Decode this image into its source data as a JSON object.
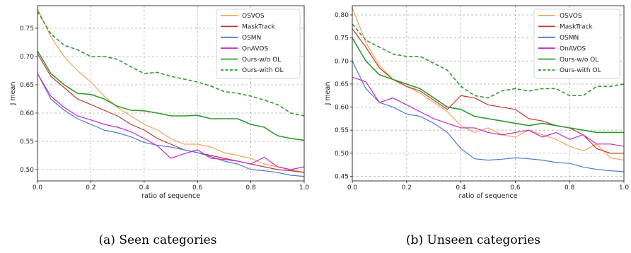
{
  "chart_data": [
    {
      "type": "line",
      "caption": "(a) Seen categories",
      "xlabel": "ratio of sequence",
      "ylabel": "J mean",
      "xlim": [
        0,
        1
      ],
      "ylim": [
        0.48,
        0.79
      ],
      "xticks": [
        0.0,
        0.2,
        0.4,
        0.6,
        0.8,
        1.0
      ],
      "xtick_labels": [
        "0.0",
        "0.2",
        "0.4",
        "0.6",
        "0.8",
        "1.0"
      ],
      "yticks": [
        0.5,
        0.55,
        0.6,
        0.65,
        0.7,
        0.75
      ],
      "ytick_labels": [
        "0.50",
        "0.55",
        "0.60",
        "0.65",
        "0.70",
        "0.75"
      ],
      "grid": true,
      "legend_position": "top-right",
      "series": [
        {
          "name": "OSVOS",
          "color": "#f5a35a",
          "style": "solid",
          "x": [
            0,
            0.05,
            0.1,
            0.15,
            0.2,
            0.25,
            0.3,
            0.35,
            0.4,
            0.45,
            0.5,
            0.55,
            0.6,
            0.65,
            0.7,
            0.75,
            0.8,
            0.85,
            0.9,
            0.95,
            1.0
          ],
          "y": [
            0.785,
            0.735,
            0.7,
            0.675,
            0.655,
            0.63,
            0.61,
            0.595,
            0.58,
            0.57,
            0.555,
            0.545,
            0.545,
            0.54,
            0.53,
            0.525,
            0.52,
            0.51,
            0.505,
            0.5,
            0.495
          ]
        },
        {
          "name": "MaskTrack",
          "color": "#c0392b",
          "style": "solid",
          "x": [
            0,
            0.05,
            0.1,
            0.15,
            0.2,
            0.25,
            0.3,
            0.35,
            0.4,
            0.45,
            0.5,
            0.55,
            0.6,
            0.65,
            0.7,
            0.75,
            0.8,
            0.85,
            0.9,
            0.95,
            1.0
          ],
          "y": [
            0.705,
            0.665,
            0.645,
            0.625,
            0.615,
            0.605,
            0.595,
            0.58,
            0.57,
            0.555,
            0.545,
            0.535,
            0.53,
            0.525,
            0.52,
            0.515,
            0.51,
            0.505,
            0.5,
            0.498,
            0.495
          ]
        },
        {
          "name": "OSMN",
          "color": "#4a7bd0",
          "style": "solid",
          "x": [
            0,
            0.05,
            0.1,
            0.15,
            0.2,
            0.25,
            0.3,
            0.35,
            0.4,
            0.45,
            0.5,
            0.55,
            0.6,
            0.65,
            0.7,
            0.75,
            0.8,
            0.85,
            0.9,
            0.95,
            1.0
          ],
          "y": [
            0.67,
            0.625,
            0.605,
            0.59,
            0.58,
            0.57,
            0.565,
            0.558,
            0.548,
            0.543,
            0.54,
            0.535,
            0.53,
            0.523,
            0.515,
            0.51,
            0.5,
            0.498,
            0.495,
            0.49,
            0.488
          ]
        },
        {
          "name": "OnAVOS",
          "color": "#c42ac4",
          "style": "solid",
          "x": [
            0,
            0.05,
            0.1,
            0.15,
            0.2,
            0.25,
            0.3,
            0.35,
            0.4,
            0.45,
            0.5,
            0.55,
            0.6,
            0.65,
            0.7,
            0.75,
            0.8,
            0.85,
            0.9,
            0.95,
            1.0
          ],
          "y": [
            0.67,
            0.63,
            0.61,
            0.595,
            0.588,
            0.58,
            0.575,
            0.567,
            0.555,
            0.542,
            0.52,
            0.528,
            0.535,
            0.52,
            0.518,
            0.515,
            0.51,
            0.522,
            0.505,
            0.5,
            0.505
          ]
        },
        {
          "name": "Ours-w/o OL",
          "color": "#2e9a2e",
          "style": "solid",
          "x": [
            0,
            0.05,
            0.1,
            0.15,
            0.2,
            0.25,
            0.3,
            0.35,
            0.4,
            0.45,
            0.5,
            0.55,
            0.6,
            0.65,
            0.7,
            0.75,
            0.8,
            0.85,
            0.9,
            0.95,
            1.0
          ],
          "y": [
            0.71,
            0.67,
            0.65,
            0.635,
            0.633,
            0.625,
            0.612,
            0.605,
            0.604,
            0.6,
            0.595,
            0.595,
            0.596,
            0.59,
            0.59,
            0.59,
            0.58,
            0.575,
            0.56,
            0.555,
            0.552
          ]
        },
        {
          "name": "Ours-with OL",
          "color": "#2e9a2e",
          "style": "dashed",
          "x": [
            0,
            0.05,
            0.1,
            0.15,
            0.2,
            0.25,
            0.3,
            0.35,
            0.4,
            0.45,
            0.5,
            0.55,
            0.6,
            0.65,
            0.7,
            0.75,
            0.8,
            0.85,
            0.9,
            0.95,
            1.0
          ],
          "y": [
            0.78,
            0.74,
            0.72,
            0.712,
            0.7,
            0.7,
            0.695,
            0.682,
            0.67,
            0.672,
            0.665,
            0.66,
            0.655,
            0.648,
            0.638,
            0.635,
            0.63,
            0.623,
            0.615,
            0.6,
            0.595
          ]
        }
      ]
    },
    {
      "type": "line",
      "caption": "(b) Unseen categories",
      "xlabel": "ratio of sequence",
      "ylabel": "J mean",
      "xlim": [
        0,
        1
      ],
      "ylim": [
        0.44,
        0.82
      ],
      "xticks": [
        0.0,
        0.2,
        0.4,
        0.6,
        0.8,
        1.0
      ],
      "xtick_labels": [
        "0.0",
        "0.2",
        "0.4",
        "0.6",
        "0.8",
        "1.0"
      ],
      "yticks": [
        0.45,
        0.5,
        0.55,
        0.6,
        0.65,
        0.7,
        0.75,
        0.8
      ],
      "ytick_labels": [
        "0.45",
        "0.50",
        "0.55",
        "0.60",
        "0.65",
        "0.70",
        "0.75",
        "0.80"
      ],
      "grid": true,
      "legend_position": "top-right",
      "series": [
        {
          "name": "OSVOS",
          "color": "#f5a35a",
          "style": "solid",
          "x": [
            0,
            0.05,
            0.1,
            0.15,
            0.2,
            0.25,
            0.3,
            0.35,
            0.4,
            0.45,
            0.5,
            0.55,
            0.6,
            0.65,
            0.7,
            0.75,
            0.8,
            0.85,
            0.9,
            0.95,
            1.0
          ],
          "y": [
            0.815,
            0.74,
            0.69,
            0.66,
            0.645,
            0.63,
            0.61,
            0.59,
            0.56,
            0.545,
            0.555,
            0.54,
            0.535,
            0.55,
            0.54,
            0.53,
            0.515,
            0.505,
            0.52,
            0.49,
            0.485
          ]
        },
        {
          "name": "MaskTrack",
          "color": "#c0392b",
          "style": "solid",
          "x": [
            0,
            0.05,
            0.1,
            0.15,
            0.2,
            0.25,
            0.3,
            0.35,
            0.4,
            0.45,
            0.5,
            0.55,
            0.6,
            0.65,
            0.7,
            0.75,
            0.8,
            0.85,
            0.9,
            0.95,
            1.0
          ],
          "y": [
            0.77,
            0.73,
            0.685,
            0.66,
            0.645,
            0.635,
            0.615,
            0.595,
            0.625,
            0.62,
            0.605,
            0.6,
            0.595,
            0.575,
            0.57,
            0.56,
            0.555,
            0.54,
            0.51,
            0.5,
            0.5
          ]
        },
        {
          "name": "OSMN",
          "color": "#4a7bd0",
          "style": "solid",
          "x": [
            0,
            0.05,
            0.1,
            0.15,
            0.2,
            0.25,
            0.3,
            0.35,
            0.4,
            0.45,
            0.5,
            0.55,
            0.6,
            0.65,
            0.7,
            0.75,
            0.8,
            0.85,
            0.9,
            0.95,
            1.0
          ],
          "y": [
            0.7,
            0.64,
            0.61,
            0.6,
            0.585,
            0.58,
            0.565,
            0.545,
            0.51,
            0.488,
            0.485,
            0.487,
            0.49,
            0.488,
            0.485,
            0.48,
            0.478,
            0.47,
            0.465,
            0.462,
            0.46
          ]
        },
        {
          "name": "OnAVOS",
          "color": "#c42ac4",
          "style": "solid",
          "x": [
            0,
            0.05,
            0.1,
            0.15,
            0.2,
            0.25,
            0.3,
            0.35,
            0.4,
            0.45,
            0.5,
            0.55,
            0.6,
            0.65,
            0.7,
            0.75,
            0.8,
            0.85,
            0.9,
            0.95,
            1.0
          ],
          "y": [
            0.665,
            0.655,
            0.61,
            0.62,
            0.605,
            0.59,
            0.575,
            0.565,
            0.555,
            0.555,
            0.545,
            0.54,
            0.545,
            0.55,
            0.535,
            0.545,
            0.53,
            0.54,
            0.52,
            0.52,
            0.515
          ]
        },
        {
          "name": "Ours-w/o OL",
          "color": "#2e9a2e",
          "style": "solid",
          "x": [
            0,
            0.05,
            0.1,
            0.15,
            0.2,
            0.25,
            0.3,
            0.35,
            0.4,
            0.45,
            0.5,
            0.55,
            0.6,
            0.65,
            0.7,
            0.75,
            0.8,
            0.85,
            0.9,
            0.95,
            1.0
          ],
          "y": [
            0.75,
            0.7,
            0.67,
            0.66,
            0.65,
            0.64,
            0.62,
            0.6,
            0.595,
            0.58,
            0.575,
            0.57,
            0.565,
            0.56,
            0.565,
            0.56,
            0.555,
            0.55,
            0.545,
            0.545,
            0.545
          ]
        },
        {
          "name": "Ours-with OL",
          "color": "#2e9a2e",
          "style": "dashed",
          "x": [
            0,
            0.05,
            0.1,
            0.15,
            0.2,
            0.25,
            0.3,
            0.35,
            0.4,
            0.45,
            0.5,
            0.55,
            0.6,
            0.65,
            0.7,
            0.75,
            0.8,
            0.85,
            0.9,
            0.95,
            1.0
          ],
          "y": [
            0.78,
            0.745,
            0.73,
            0.715,
            0.71,
            0.71,
            0.695,
            0.68,
            0.645,
            0.625,
            0.62,
            0.635,
            0.64,
            0.635,
            0.64,
            0.64,
            0.625,
            0.625,
            0.645,
            0.645,
            0.65
          ]
        }
      ]
    }
  ]
}
